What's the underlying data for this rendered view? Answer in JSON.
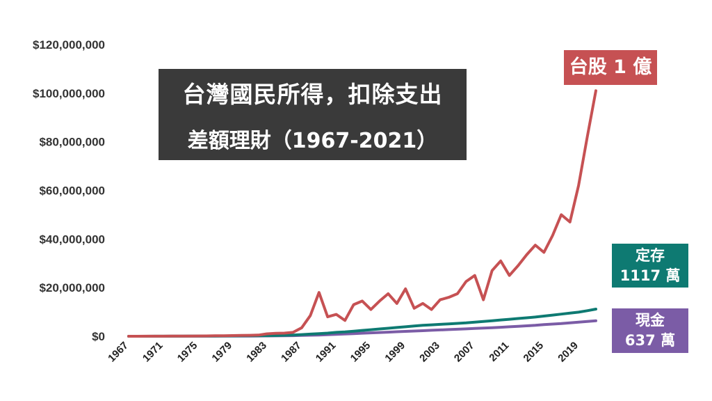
{
  "chart_data": {
    "type": "line",
    "title_line1": "台灣國民所得，扣除支出",
    "title_line2": "差額理財（1967-2021）",
    "ylim": [
      0,
      120000000
    ],
    "yticks": [
      0,
      20000000,
      40000000,
      60000000,
      80000000,
      100000000,
      120000000
    ],
    "ytick_labels": [
      "$0",
      "$20,000,000",
      "$40,000,000",
      "$60,000,000",
      "$80,000,000",
      "$100,000,000",
      "$120,000,000"
    ],
    "xlim": [
      1967,
      2021
    ],
    "xtick_labels": [
      "1967",
      "1971",
      "1975",
      "1979",
      "1983",
      "1987",
      "1991",
      "1995",
      "1999",
      "2003",
      "2007",
      "2011",
      "2015",
      "2019"
    ],
    "grid": false,
    "x": [
      1967,
      1968,
      1969,
      1970,
      1971,
      1972,
      1973,
      1974,
      1975,
      1976,
      1977,
      1978,
      1979,
      1980,
      1981,
      1982,
      1983,
      1984,
      1985,
      1986,
      1987,
      1988,
      1989,
      1990,
      1991,
      1992,
      1993,
      1994,
      1995,
      1996,
      1997,
      1998,
      1999,
      2000,
      2001,
      2002,
      2003,
      2004,
      2005,
      2006,
      2007,
      2008,
      2009,
      2010,
      2011,
      2012,
      2013,
      2014,
      2015,
      2016,
      2017,
      2018,
      2019,
      2020,
      2021
    ],
    "series": [
      {
        "color": "#c65153",
        "values": [
          0,
          10000,
          20000,
          30000,
          40000,
          50000,
          70000,
          90000,
          120000,
          150000,
          190000,
          230000,
          280000,
          340000,
          410000,
          480000,
          1000000,
          1200000,
          1300000,
          1600000,
          3500000,
          8500000,
          18000000,
          8000000,
          9000000,
          6500000,
          13000000,
          14500000,
          11000000,
          14500000,
          17500000,
          13500000,
          19500000,
          11500000,
          13500000,
          11000000,
          15000000,
          16000000,
          17500000,
          22500000,
          25000000,
          15000000,
          27000000,
          31000000,
          25000000,
          29000000,
          33500000,
          37500000,
          34500000,
          41500000,
          50000000,
          47000000,
          62000000,
          82000000,
          101000000
        ]
      },
      {
        "color": "#0e7a72",
        "values": [
          0,
          5000,
          10000,
          15000,
          20000,
          30000,
          40000,
          50000,
          60000,
          80000,
          100000,
          120000,
          140000,
          160000,
          190000,
          220000,
          260000,
          300000,
          400000,
          500000,
          700000,
          900000,
          1100000,
          1300000,
          1600000,
          1800000,
          2100000,
          2400000,
          2700000,
          3000000,
          3300000,
          3600000,
          3900000,
          4200000,
          4500000,
          4700000,
          4900000,
          5100000,
          5300000,
          5500000,
          5800000,
          6100000,
          6400000,
          6700000,
          7000000,
          7300000,
          7600000,
          7900000,
          8300000,
          8700000,
          9100000,
          9500000,
          9900000,
          10500000,
          11170000
        ]
      },
      {
        "color": "#7b5ca6",
        "values": [
          0,
          3000,
          6000,
          9000,
          12000,
          16000,
          20000,
          25000,
          30000,
          40000,
          50000,
          60000,
          70000,
          80000,
          100000,
          120000,
          140000,
          170000,
          200000,
          250000,
          330000,
          420000,
          520000,
          650000,
          800000,
          950000,
          1100000,
          1250000,
          1400000,
          1550000,
          1700000,
          1850000,
          2000000,
          2150000,
          2300000,
          2450000,
          2600000,
          2750000,
          2900000,
          3050000,
          3200000,
          3350000,
          3500000,
          3700000,
          3900000,
          4100000,
          4300000,
          4500000,
          4800000,
          5000000,
          5200000,
          5500000,
          5800000,
          6100000,
          6370000
        ]
      }
    ]
  },
  "tags": {
    "stock": "台股 1 億",
    "deposit_line1": "定存",
    "deposit_line2": "1117 萬",
    "cash_line1": "現金",
    "cash_line2": "637 萬"
  }
}
